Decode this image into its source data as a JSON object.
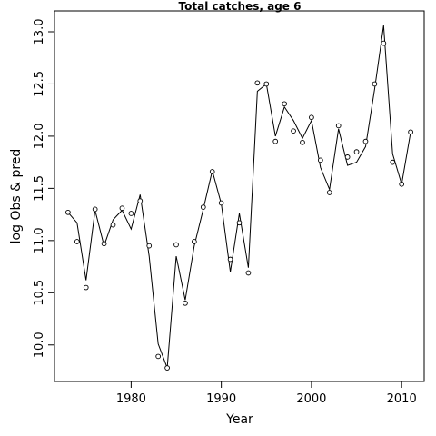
{
  "chart_data": {
    "type": "line",
    "title": "Total catches, age 6",
    "xlabel": "Year",
    "ylabel": "log Obs & pred",
    "xlim": [
      1971.5,
      2012.5
    ],
    "ylim": [
      9.65,
      13.2
    ],
    "xticks": [
      1980,
      1990,
      2000,
      2010
    ],
    "yticks": [
      10.0,
      10.5,
      11.0,
      11.5,
      12.0,
      12.5,
      13.0
    ],
    "ytick_labels": [
      "10.0",
      "10.5",
      "11.0",
      "11.5",
      "12.0",
      "12.5",
      "13.0"
    ],
    "grid": false,
    "series": [
      {
        "style": "points",
        "x": [
          1973,
          1974,
          1975,
          1976,
          1977,
          1978,
          1979,
          1980,
          1981,
          1982,
          1983,
          1984,
          1985,
          1986,
          1987,
          1988,
          1989,
          1990,
          1991,
          1992,
          1993,
          1994,
          1995,
          1996,
          1997,
          1998,
          1999,
          2000,
          2001,
          2002,
          2003,
          2004,
          2005,
          2006,
          2007,
          2008,
          2009,
          2010,
          2011
        ],
        "values": [
          11.27,
          10.99,
          10.55,
          11.3,
          10.97,
          11.15,
          11.31,
          11.26,
          11.38,
          10.95,
          9.89,
          9.78,
          10.96,
          10.4,
          10.99,
          11.32,
          11.66,
          11.36,
          10.82,
          11.17,
          10.69,
          12.51,
          12.5,
          11.95,
          12.31,
          12.05,
          11.94,
          12.18,
          11.77,
          11.46,
          12.1,
          11.8,
          11.85,
          11.95,
          12.5,
          12.89,
          11.75,
          11.54,
          12.04
        ]
      },
      {
        "style": "line",
        "x": [
          1973,
          1974,
          1975,
          1976,
          1977,
          1978,
          1979,
          1980,
          1981,
          1982,
          1983,
          1984,
          1985,
          1986,
          1987,
          1988,
          1989,
          1990,
          1991,
          1992,
          1993,
          1994,
          1995,
          1996,
          1997,
          1998,
          1999,
          2000,
          2001,
          2002,
          2003,
          2004,
          2005,
          2006,
          2007,
          2008,
          2009,
          2010,
          2011
        ],
        "values": [
          11.27,
          11.17,
          10.62,
          11.29,
          10.95,
          11.2,
          11.29,
          11.11,
          11.44,
          10.85,
          10.01,
          9.78,
          10.85,
          10.43,
          10.95,
          11.3,
          11.67,
          11.35,
          10.7,
          11.26,
          10.74,
          12.43,
          12.5,
          12.0,
          12.28,
          12.15,
          11.98,
          12.15,
          11.7,
          11.49,
          12.07,
          11.72,
          11.75,
          11.9,
          12.45,
          13.06,
          11.83,
          11.54,
          12.04
        ]
      }
    ]
  }
}
